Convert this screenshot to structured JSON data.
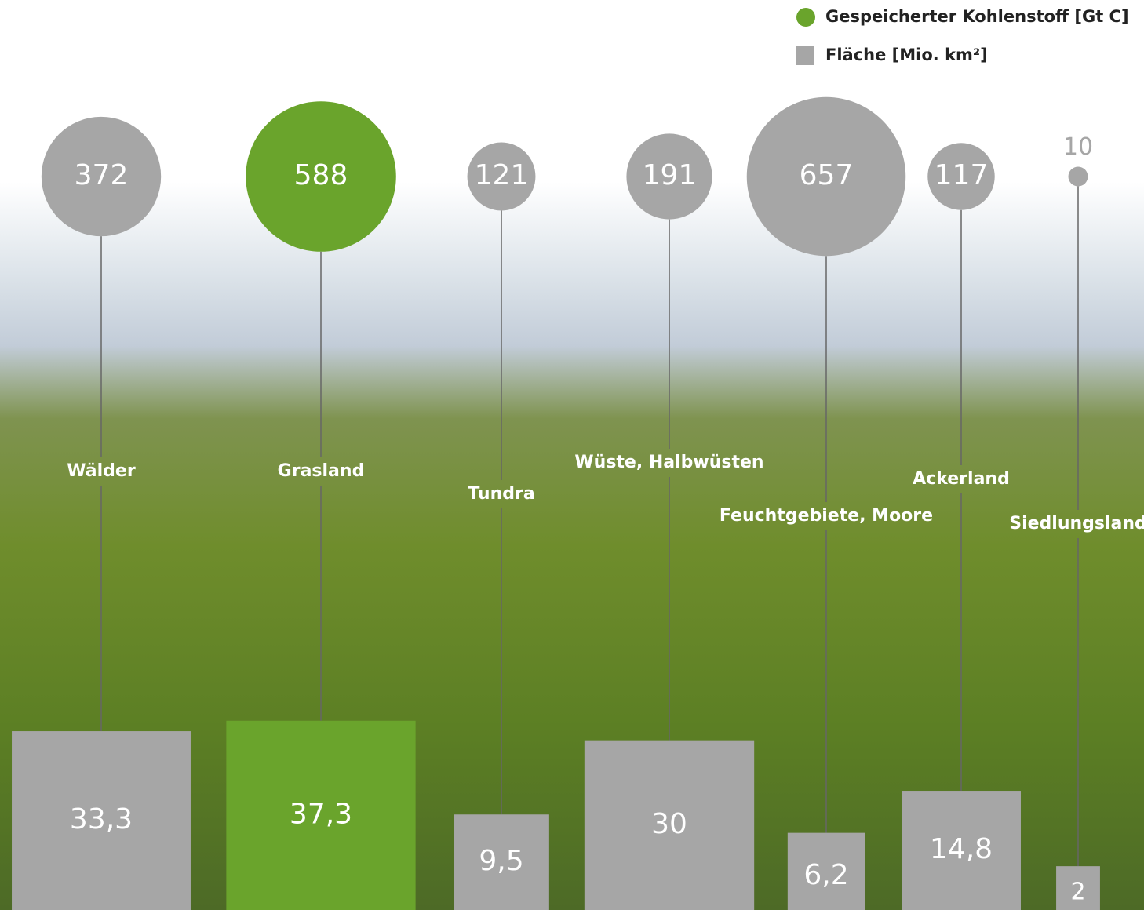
{
  "chart_data": {
    "type": "bubble-square",
    "categories": [
      "Wälder",
      "Grasland",
      "Tundra",
      "Wüste, Halbwüsten",
      "Feuchtgebiete, Moore",
      "Ackerland",
      "Siedlungsland"
    ],
    "series": [
      {
        "name": "Gespeicherter Kohlenstoff [Gt C]",
        "color": "#6aa42c",
        "values": [
          372,
          588,
          121,
          191,
          657,
          117,
          10
        ],
        "point_colors": [
          "#a6a6a6",
          "#6aa42c",
          "#a6a6a6",
          "#a6a6a6",
          "#a6a6a6",
          "#a6a6a6",
          "#a6a6a6"
        ]
      },
      {
        "name": "Fläche [Mio. km²]",
        "color": "#a6a6a6",
        "values": [
          33.3,
          37.3,
          9.5,
          30,
          6.2,
          14.8,
          2
        ],
        "value_labels": [
          "33,3",
          "37,3",
          "9,5",
          "30",
          "6,2",
          "14,8",
          "2"
        ],
        "point_colors": [
          "#a6a6a6",
          "#6aa42c",
          "#a6a6a6",
          "#a6a6a6",
          "#a6a6a6",
          "#a6a6a6",
          "#a6a6a6"
        ]
      }
    ]
  }
}
